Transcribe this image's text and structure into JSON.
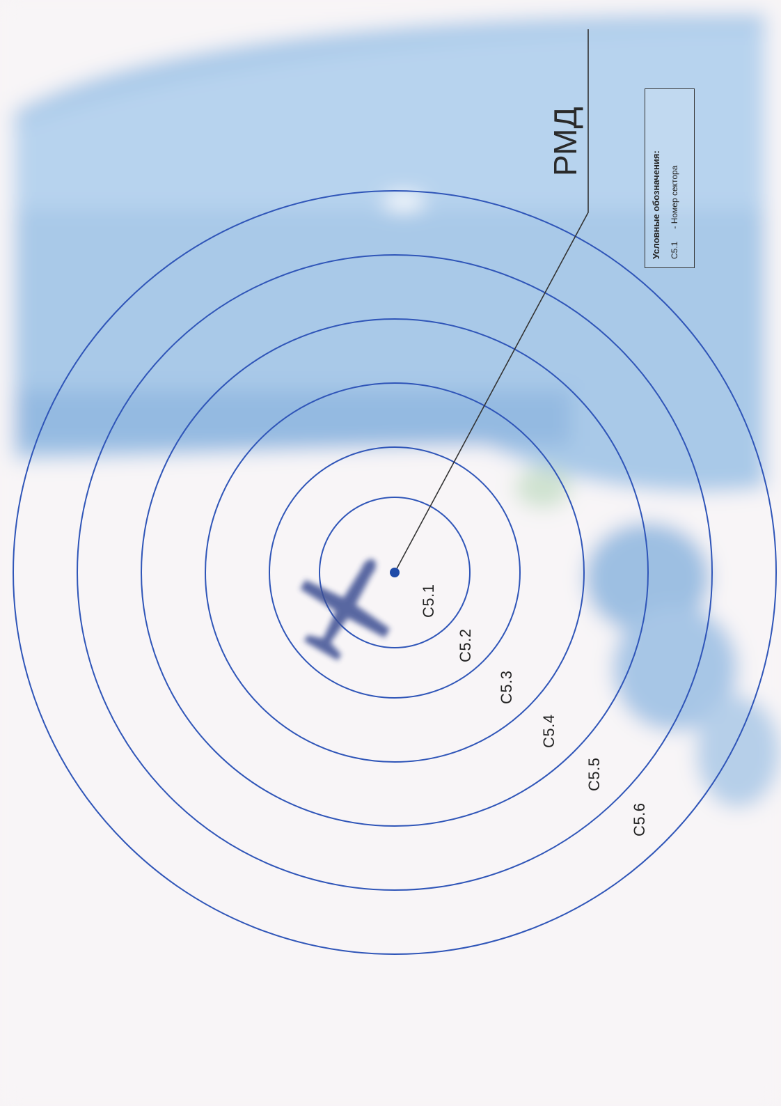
{
  "map": {
    "station_label": "РМД",
    "sector_labels": [
      "C5.1",
      "C5.2",
      "C5.3",
      "C5.4",
      "C5.5",
      "C5.6"
    ],
    "ring_color": "#2f55b8",
    "route_color": "#333333",
    "center_marker_color": "#1f4aa8",
    "aircraft_icon": "airplane-icon"
  },
  "legend": {
    "title": "Условные обозначения:",
    "item_code": "C5.1",
    "item_text": "- Номер сектора"
  }
}
